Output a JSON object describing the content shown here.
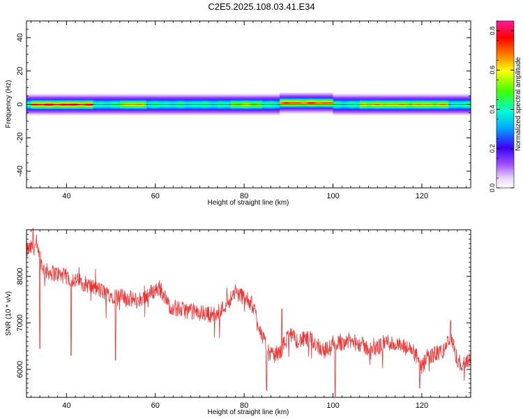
{
  "title": "C2E5.2025.108.03.41.E34",
  "chart_data": [
    {
      "type": "heatmap",
      "title": "",
      "xlabel": "Height of straight line (km)",
      "ylabel": "Frequency (Hz)",
      "xlim": [
        31,
        131
      ],
      "ylim": [
        -50,
        50
      ],
      "xticks": [
        40,
        60,
        80,
        100,
        120
      ],
      "yticks": [
        -40,
        -20,
        0,
        20,
        40
      ],
      "colorbar": {
        "label": "Normalized spectral amplitude",
        "lim": [
          0,
          0.85
        ],
        "ticks": [
          0.0,
          0.2,
          0.4,
          0.6,
          0.8
        ],
        "colormap": "rainbow (white-purple-blue-cyan-green-yellow-orange-red-magenta)"
      },
      "ridge": {
        "description": "narrow band centred near 0 Hz across all heights",
        "half_width_hz": 3,
        "faint_halo_hz": 7,
        "peak_segments": [
          {
            "x0": 32,
            "x1": 46,
            "f": 0,
            "amp": 0.75
          },
          {
            "x0": 52,
            "x1": 58,
            "f": 0,
            "amp": 0.6
          },
          {
            "x0": 77,
            "x1": 84,
            "f": 0,
            "amp": 0.55
          },
          {
            "x0": 88,
            "x1": 100,
            "f": 1,
            "amp": 0.72
          },
          {
            "x0": 106,
            "x1": 126,
            "f": 0,
            "amp": 0.6
          }
        ]
      }
    },
    {
      "type": "line",
      "title": "",
      "xlabel": "Height of straight line (km)",
      "ylabel": "SNR (10 * v/v)",
      "xlim": [
        31,
        131
      ],
      "ylim": [
        5400,
        9000
      ],
      "xticks": [
        40,
        60,
        80,
        100,
        120
      ],
      "yticks": [
        6000,
        7000,
        8000
      ],
      "color": "#ee3333",
      "series": [
        {
          "x": [
            31,
            33,
            35,
            38,
            41,
            44,
            47,
            50,
            53,
            56,
            59,
            61,
            63,
            65,
            68,
            71,
            74,
            76,
            78,
            80,
            82,
            83,
            84,
            85,
            86,
            88,
            90,
            92,
            95,
            98,
            100,
            103,
            106,
            109,
            112,
            115,
            118,
            119,
            120,
            121,
            123,
            125,
            126,
            127,
            128,
            129,
            130,
            131
          ],
          "values": [
            8550,
            8650,
            8120,
            8050,
            7950,
            7850,
            7720,
            7600,
            7550,
            7470,
            7650,
            7750,
            7380,
            7300,
            7250,
            7200,
            7170,
            7420,
            7650,
            7560,
            7370,
            7050,
            6750,
            6450,
            6300,
            6350,
            6750,
            6620,
            6650,
            6400,
            6500,
            6620,
            6550,
            6400,
            6600,
            6500,
            6400,
            6250,
            6000,
            6250,
            6330,
            6400,
            6650,
            6550,
            6200,
            6100,
            6180,
            6250
          ],
          "noise_amplitude": 180,
          "min_dips": [
            {
              "x": 34,
              "y": 6450
            },
            {
              "x": 41,
              "y": 6300
            },
            {
              "x": 51,
              "y": 6200
            },
            {
              "x": 85,
              "y": 5550
            },
            {
              "x": 100.5,
              "y": 5420
            },
            {
              "x": 119.5,
              "y": 5600
            }
          ],
          "max_spikes": [
            {
              "x": 32.5,
              "y": 9050
            },
            {
              "x": 88.5,
              "y": 7300
            },
            {
              "x": 126.5,
              "y": 7050
            }
          ]
        }
      ]
    }
  ]
}
